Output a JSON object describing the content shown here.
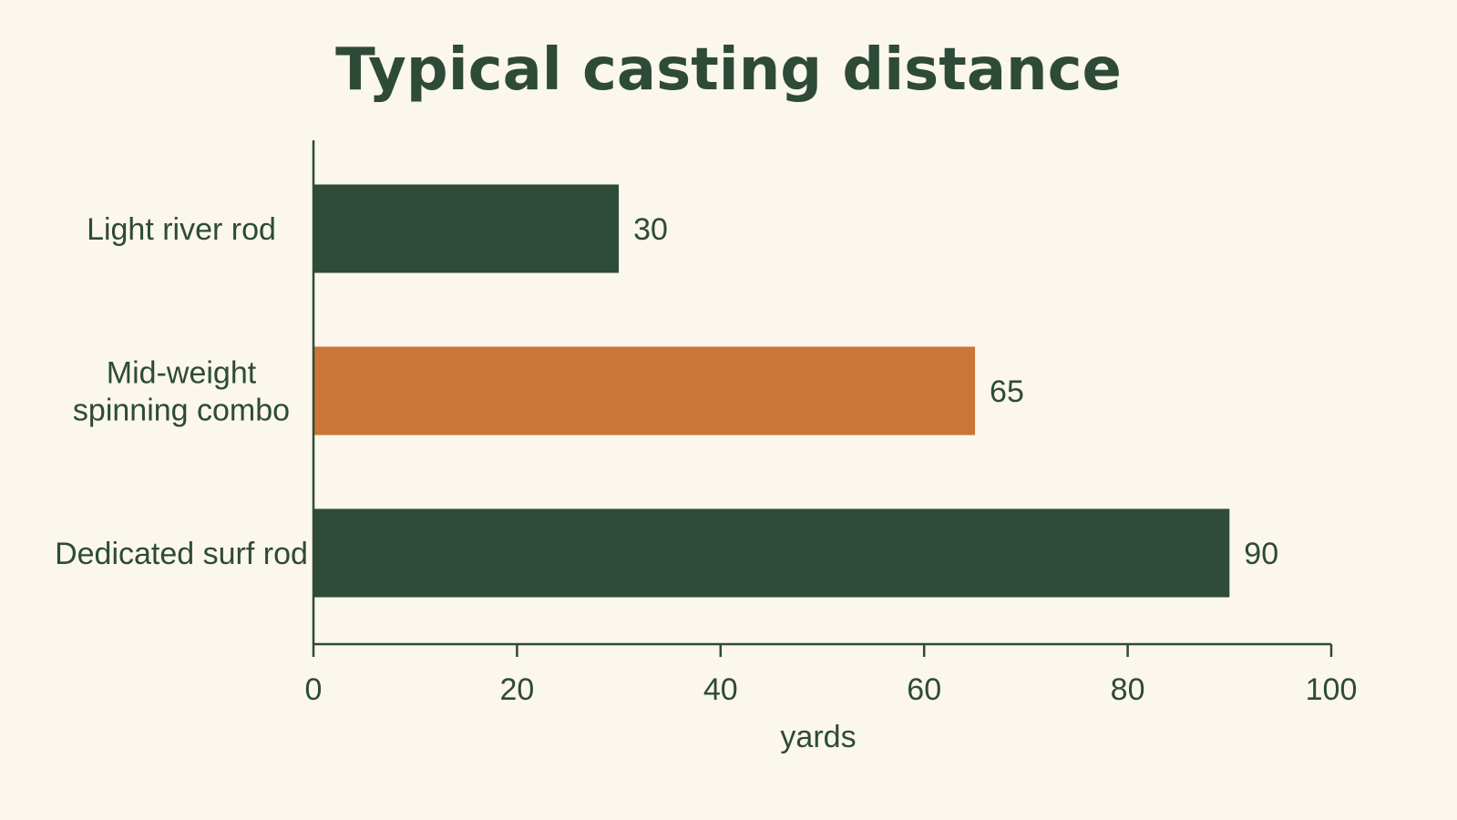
{
  "chart_data": {
    "type": "bar",
    "orientation": "horizontal",
    "title": "Typical casting distance",
    "xlabel": "yards",
    "ylabel": "",
    "categories": [
      "Light river rod",
      "Mid-weight spinning combo",
      "Dedicated surf rod"
    ],
    "category_lines": [
      [
        "Light river rod"
      ],
      [
        "Mid-weight",
        "spinning combo"
      ],
      [
        "Dedicated surf rod"
      ]
    ],
    "values": [
      30,
      65,
      90
    ],
    "value_labels": [
      "30",
      "65",
      "90"
    ],
    "colors": [
      "#2f4b39",
      "#c97638",
      "#2f4b39"
    ],
    "xlim": [
      0,
      100
    ],
    "xticks": [
      0,
      20,
      40,
      60,
      80,
      100
    ],
    "xtick_labels": [
      "0",
      "20",
      "40",
      "60",
      "80",
      "100"
    ],
    "grid": false,
    "legend": "none"
  },
  "colors": {
    "background": "#fbf7ec",
    "text": "#2e4a38",
    "primary_bar": "#2f4b39",
    "highlight_bar": "#c97638"
  }
}
